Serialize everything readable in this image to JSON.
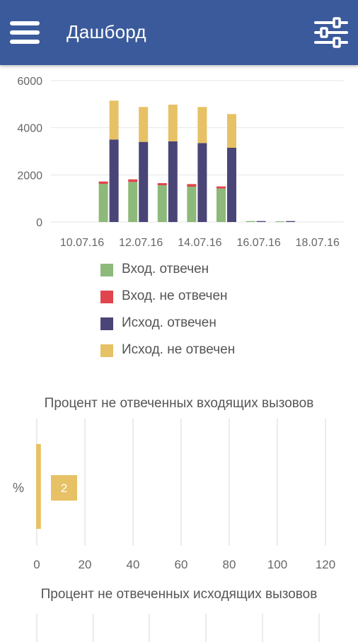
{
  "appbar": {
    "title": "Дашборд",
    "menu_icon": "hamburger-menu-icon",
    "filter_icon": "sliders-icon",
    "color": "#3a5a9b"
  },
  "chart_data": [
    {
      "type": "bar",
      "stacked": true,
      "categories": [
        "10.07.16",
        "11.07.16",
        "12.07.16",
        "13.07.16",
        "14.07.16",
        "15.07.16",
        "16.07.16",
        "17.07.16",
        "18.07.16"
      ],
      "x_tick_labels": [
        "10.07.16",
        "12.07.16",
        "14.07.16",
        "16.07.16",
        "18.07.16"
      ],
      "groups": [
        {
          "name": "incoming",
          "series": [
            {
              "name": "Вход. отвечен",
              "color": "#8db97a",
              "values": [
                0,
                1620,
                1700,
                1560,
                1500,
                1420,
                40,
                30,
                0
              ]
            },
            {
              "name": "Вход. не отвечен",
              "color": "#e0454d",
              "values": [
                0,
                100,
                110,
                90,
                110,
                90,
                0,
                0,
                0
              ]
            }
          ]
        },
        {
          "name": "outgoing",
          "series": [
            {
              "name": "Исход. отвечен",
              "color": "#4a4577",
              "values": [
                0,
                3500,
                3400,
                3420,
                3350,
                3150,
                40,
                40,
                0
              ]
            },
            {
              "name": "Исход. не отвечен",
              "color": "#e7c165",
              "values": [
                0,
                1650,
                1480,
                1560,
                1530,
                1430,
                0,
                0,
                0
              ]
            }
          ]
        }
      ],
      "y_ticks": [
        0,
        2000,
        4000,
        6000
      ],
      "ylim": [
        0,
        6000
      ],
      "grid": true,
      "legend": [
        "Вход. отвечен",
        "Вход. не отвечен",
        "Исход. отвечен",
        "Исход. не отвечен"
      ],
      "legend_position": "bottom"
    },
    {
      "type": "bar",
      "orientation": "horizontal",
      "title": "Процент не отвеченных входящих вызовов",
      "categories": [
        "%"
      ],
      "values": [
        2
      ],
      "data_labels": [
        "2"
      ],
      "color": "#e7c165",
      "x_ticks": [
        0,
        20,
        40,
        60,
        80,
        100,
        120
      ],
      "xlim": [
        0,
        120
      ],
      "grid": true
    },
    {
      "type": "bar",
      "orientation": "horizontal",
      "title": "Процент не отвеченных исходящих вызовов",
      "grid": true
    }
  ]
}
